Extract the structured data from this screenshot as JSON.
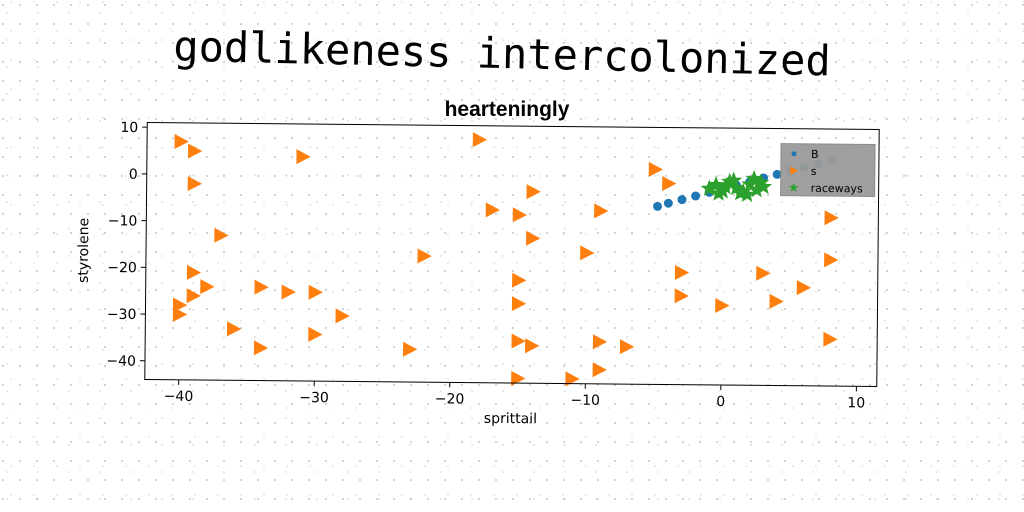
{
  "chart_data": {
    "type": "scatter",
    "title": "godlikeness intercolonized",
    "subtitle": "hearteningly",
    "xlabel": "sprittail",
    "ylabel": "styrolene",
    "xlim": [
      -42.5,
      11.5
    ],
    "ylim": [
      -44,
      11
    ],
    "xticks": [
      -40,
      -30,
      -20,
      -10,
      0,
      10
    ],
    "yticks": [
      10,
      0,
      -10,
      -20,
      -30,
      -40
    ],
    "legend_position": "top-right",
    "series": [
      {
        "name": "B",
        "marker": "circle",
        "color": "#1f77b4",
        "x": [
          -4.8,
          -4.0,
          -3.0,
          -2.0,
          -1.0,
          0.0,
          1.0,
          2.0,
          3.0,
          4.0,
          5.0,
          6.0,
          7.0,
          8.0
        ],
        "y": [
          -5.9,
          -5.2,
          -4.4,
          -3.6,
          -2.8,
          -2.0,
          -1.2,
          -0.4,
          0.4,
          1.2,
          2.0,
          2.8,
          3.6,
          4.6
        ]
      },
      {
        "name": "s",
        "marker": "triangle-right",
        "color": "#ff7f0e",
        "x": [
          -40,
          -39,
          -39,
          -31,
          -18,
          -5,
          -4,
          -40,
          -17,
          -15,
          -14,
          -9,
          8,
          -37,
          -14,
          -10,
          -22,
          -39,
          -15,
          -3,
          3,
          8,
          -34,
          -38,
          -32,
          -30,
          -40,
          -39,
          -15,
          -28,
          -3,
          0,
          4,
          6,
          -36,
          -30,
          -34,
          -23,
          -15,
          -14,
          -9,
          -7,
          -9,
          -15,
          -11,
          8
        ],
        "y": [
          7,
          5,
          -2,
          4,
          8,
          2,
          -1,
          -28,
          -7,
          -8,
          -13,
          -7,
          -8,
          -13,
          -3,
          -16,
          -17,
          -21,
          -22,
          -20,
          -20,
          -17,
          -24,
          -24,
          -25,
          -25,
          -30,
          -26,
          -27,
          -30,
          -25,
          -27,
          -26,
          -23,
          -33,
          -34,
          -37,
          -37,
          -35,
          -36,
          -35,
          -36,
          -41,
          -43,
          -43,
          -34
        ]
      },
      {
        "name": "raceways",
        "marker": "star",
        "color": "#2ca02c",
        "x": [
          -1.0,
          -0.5,
          0.0,
          0.5,
          1.0,
          1.5,
          2.0,
          2.5,
          3.0,
          -0.3,
          0.8,
          1.8,
          2.8,
          0.2,
          1.3,
          2.3
        ],
        "y": [
          -2.0,
          -1.2,
          -2.5,
          -0.5,
          -1.8,
          -2.6,
          -1.0,
          -2.2,
          -1.5,
          -3.0,
          -0.2,
          -3.2,
          -0.6,
          -1.6,
          -2.9,
          0.2
        ]
      }
    ]
  },
  "legend": {
    "entries": [
      "B",
      "s",
      "raceways"
    ]
  }
}
